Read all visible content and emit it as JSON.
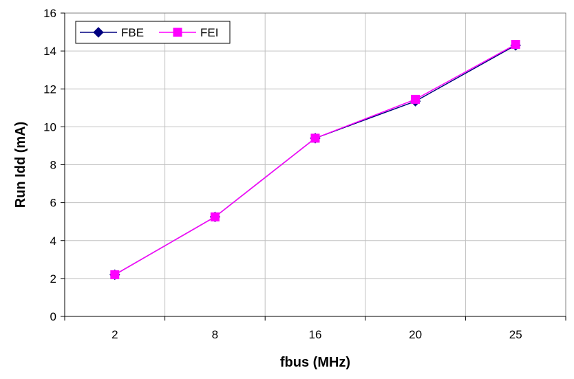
{
  "chart_data": {
    "type": "line",
    "title": "",
    "xlabel": "fbus (MHz)",
    "ylabel": "Run Idd (mA)",
    "categories": [
      "2",
      "8",
      "16",
      "20",
      "25"
    ],
    "ylim": [
      0,
      16
    ],
    "yticks": [
      0,
      2,
      4,
      6,
      8,
      10,
      12,
      14,
      16
    ],
    "grid": true,
    "legend_position": "top-left",
    "series": [
      {
        "name": "FBE",
        "values": [
          2.2,
          5.25,
          9.4,
          11.35,
          14.3
        ],
        "color": "#000080",
        "marker": "diamond"
      },
      {
        "name": "FEI",
        "values": [
          2.2,
          5.25,
          9.4,
          11.45,
          14.35
        ],
        "color": "#ff00ff",
        "marker": "square"
      }
    ]
  }
}
